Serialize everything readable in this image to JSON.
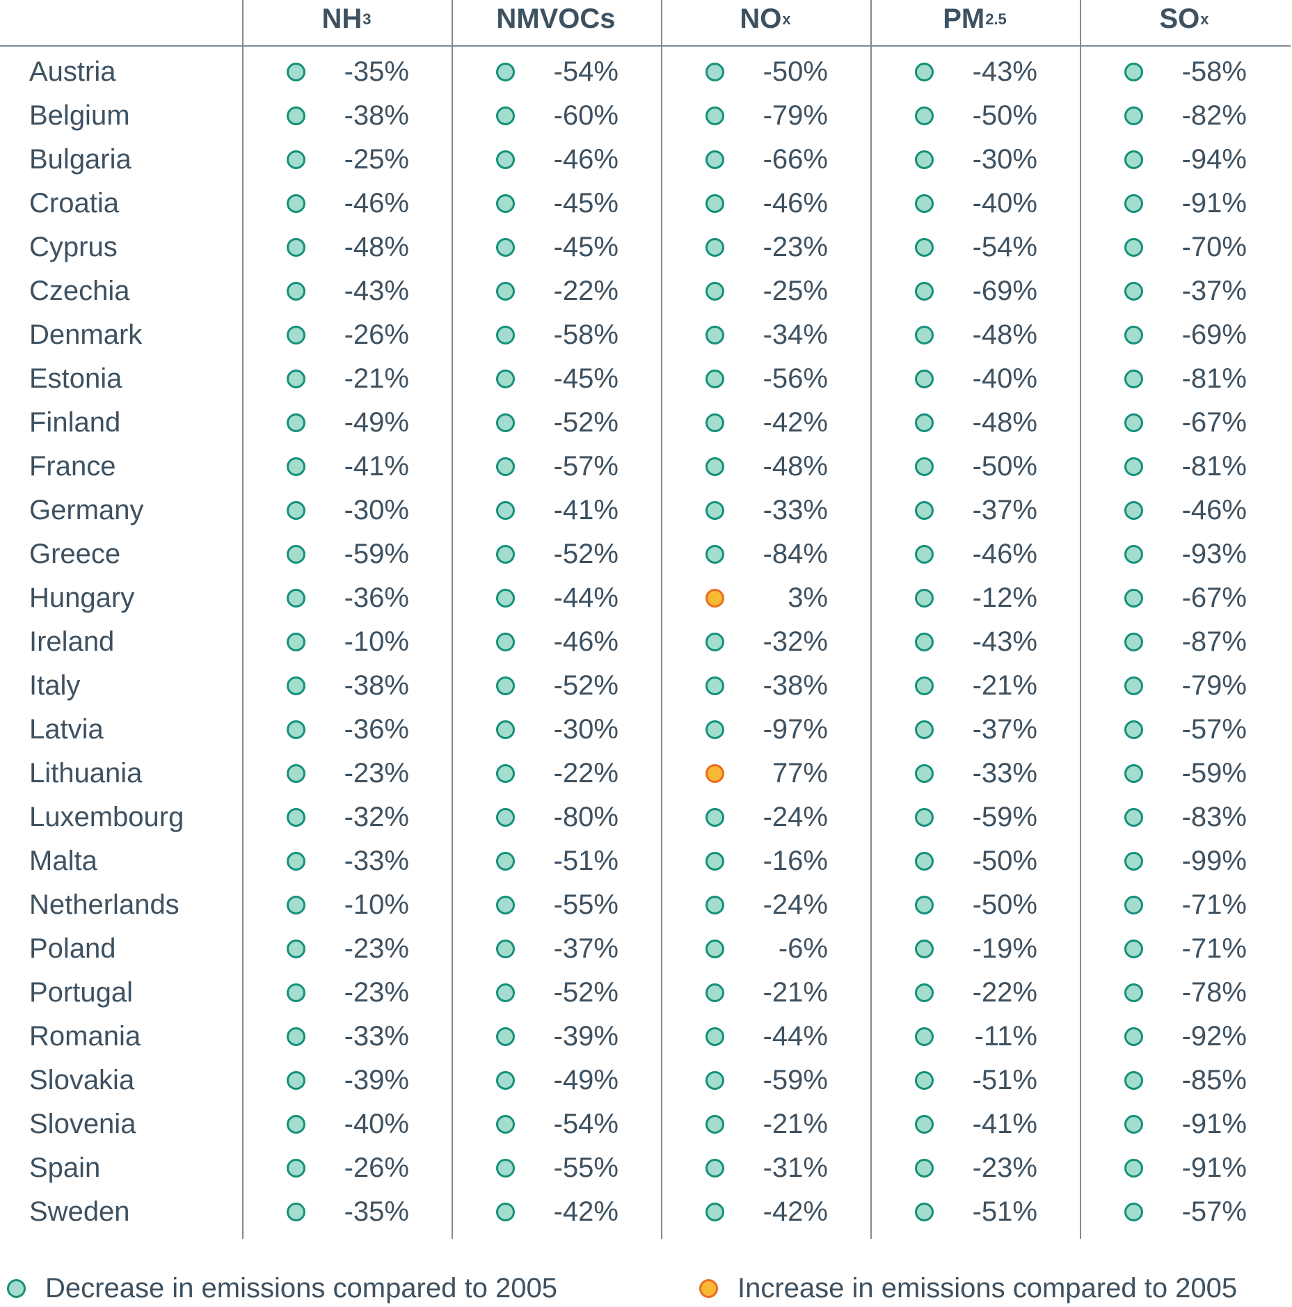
{
  "chart_data": {
    "type": "table",
    "columns": [
      {
        "base": "NH",
        "sub": "3"
      },
      {
        "base": "NMVOCs",
        "sub": ""
      },
      {
        "base": "NO",
        "sub": "x"
      },
      {
        "base": "PM",
        "sub": "2.5"
      },
      {
        "base": "SO",
        "sub": "x"
      }
    ],
    "rows": [
      {
        "country": "Austria",
        "values": [
          "-35%",
          "-54%",
          "-50%",
          "-43%",
          "-58%"
        ],
        "status": [
          "decrease",
          "decrease",
          "decrease",
          "decrease",
          "decrease"
        ]
      },
      {
        "country": "Belgium",
        "values": [
          "-38%",
          "-60%",
          "-79%",
          "-50%",
          "-82%"
        ],
        "status": [
          "decrease",
          "decrease",
          "decrease",
          "decrease",
          "decrease"
        ]
      },
      {
        "country": "Bulgaria",
        "values": [
          "-25%",
          "-46%",
          "-66%",
          "-30%",
          "-94%"
        ],
        "status": [
          "decrease",
          "decrease",
          "decrease",
          "decrease",
          "decrease"
        ]
      },
      {
        "country": "Croatia",
        "values": [
          "-46%",
          "-45%",
          "-46%",
          "-40%",
          "-91%"
        ],
        "status": [
          "decrease",
          "decrease",
          "decrease",
          "decrease",
          "decrease"
        ]
      },
      {
        "country": "Cyprus",
        "values": [
          "-48%",
          "-45%",
          "-23%",
          "-54%",
          "-70%"
        ],
        "status": [
          "decrease",
          "decrease",
          "decrease",
          "decrease",
          "decrease"
        ]
      },
      {
        "country": "Czechia",
        "values": [
          "-43%",
          "-22%",
          "-25%",
          "-69%",
          "-37%"
        ],
        "status": [
          "decrease",
          "decrease",
          "decrease",
          "decrease",
          "decrease"
        ]
      },
      {
        "country": "Denmark",
        "values": [
          "-26%",
          "-58%",
          "-34%",
          "-48%",
          "-69%"
        ],
        "status": [
          "decrease",
          "decrease",
          "decrease",
          "decrease",
          "decrease"
        ]
      },
      {
        "country": "Estonia",
        "values": [
          "-21%",
          "-45%",
          "-56%",
          "-40%",
          "-81%"
        ],
        "status": [
          "decrease",
          "decrease",
          "decrease",
          "decrease",
          "decrease"
        ]
      },
      {
        "country": "Finland",
        "values": [
          "-49%",
          "-52%",
          "-42%",
          "-48%",
          "-67%"
        ],
        "status": [
          "decrease",
          "decrease",
          "decrease",
          "decrease",
          "decrease"
        ]
      },
      {
        "country": "France",
        "values": [
          "-41%",
          "-57%",
          "-48%",
          "-50%",
          "-81%"
        ],
        "status": [
          "decrease",
          "decrease",
          "decrease",
          "decrease",
          "decrease"
        ]
      },
      {
        "country": "Germany",
        "values": [
          "-30%",
          "-41%",
          "-33%",
          "-37%",
          "-46%"
        ],
        "status": [
          "decrease",
          "decrease",
          "decrease",
          "decrease",
          "decrease"
        ]
      },
      {
        "country": "Greece",
        "values": [
          "-59%",
          "-52%",
          "-84%",
          "-46%",
          "-93%"
        ],
        "status": [
          "decrease",
          "decrease",
          "decrease",
          "decrease",
          "decrease"
        ]
      },
      {
        "country": "Hungary",
        "values": [
          "-36%",
          "-44%",
          "3%",
          "-12%",
          "-67%"
        ],
        "status": [
          "decrease",
          "decrease",
          "increase",
          "decrease",
          "decrease"
        ]
      },
      {
        "country": "Ireland",
        "values": [
          "-10%",
          "-46%",
          "-32%",
          "-43%",
          "-87%"
        ],
        "status": [
          "decrease",
          "decrease",
          "decrease",
          "decrease",
          "decrease"
        ]
      },
      {
        "country": "Italy",
        "values": [
          "-38%",
          "-52%",
          "-38%",
          "-21%",
          "-79%"
        ],
        "status": [
          "decrease",
          "decrease",
          "decrease",
          "decrease",
          "decrease"
        ]
      },
      {
        "country": "Latvia",
        "values": [
          "-36%",
          "-30%",
          "-97%",
          "-37%",
          "-57%"
        ],
        "status": [
          "decrease",
          "decrease",
          "decrease",
          "decrease",
          "decrease"
        ]
      },
      {
        "country": "Lithuania",
        "values": [
          "-23%",
          "-22%",
          "77%",
          "-33%",
          "-59%"
        ],
        "status": [
          "decrease",
          "decrease",
          "increase",
          "decrease",
          "decrease"
        ]
      },
      {
        "country": "Luxembourg",
        "values": [
          "-32%",
          "-80%",
          "-24%",
          "-59%",
          "-83%"
        ],
        "status": [
          "decrease",
          "decrease",
          "decrease",
          "decrease",
          "decrease"
        ]
      },
      {
        "country": "Malta",
        "values": [
          "-33%",
          "-51%",
          "-16%",
          "-50%",
          "-99%"
        ],
        "status": [
          "decrease",
          "decrease",
          "decrease",
          "decrease",
          "decrease"
        ]
      },
      {
        "country": "Netherlands",
        "values": [
          "-10%",
          "-55%",
          "-24%",
          "-50%",
          "-71%"
        ],
        "status": [
          "decrease",
          "decrease",
          "decrease",
          "decrease",
          "decrease"
        ]
      },
      {
        "country": "Poland",
        "values": [
          "-23%",
          "-37%",
          "-6%",
          "-19%",
          "-71%"
        ],
        "status": [
          "decrease",
          "decrease",
          "decrease",
          "decrease",
          "decrease"
        ]
      },
      {
        "country": "Portugal",
        "values": [
          "-23%",
          "-52%",
          "-21%",
          "-22%",
          "-78%"
        ],
        "status": [
          "decrease",
          "decrease",
          "decrease",
          "decrease",
          "decrease"
        ]
      },
      {
        "country": "Romania",
        "values": [
          "-33%",
          "-39%",
          "-44%",
          "-11%",
          "-92%"
        ],
        "status": [
          "decrease",
          "decrease",
          "decrease",
          "decrease",
          "decrease"
        ]
      },
      {
        "country": "Slovakia",
        "values": [
          "-39%",
          "-49%",
          "-59%",
          "-51%",
          "-85%"
        ],
        "status": [
          "decrease",
          "decrease",
          "decrease",
          "decrease",
          "decrease"
        ]
      },
      {
        "country": "Slovenia",
        "values": [
          "-40%",
          "-54%",
          "-21%",
          "-41%",
          "-91%"
        ],
        "status": [
          "decrease",
          "decrease",
          "decrease",
          "decrease",
          "decrease"
        ]
      },
      {
        "country": "Spain",
        "values": [
          "-26%",
          "-55%",
          "-31%",
          "-23%",
          "-91%"
        ],
        "status": [
          "decrease",
          "decrease",
          "decrease",
          "decrease",
          "decrease"
        ]
      },
      {
        "country": "Sweden",
        "values": [
          "-35%",
          "-42%",
          "-42%",
          "-51%",
          "-57%"
        ],
        "status": [
          "decrease",
          "decrease",
          "decrease",
          "decrease",
          "decrease"
        ]
      }
    ],
    "legend": [
      {
        "key": "decrease",
        "label": "Decrease in emissions compared to 2005"
      },
      {
        "key": "increase",
        "label": "Increase in emissions compared to 2005"
      }
    ],
    "legend_placement": "bottom"
  },
  "colors": {
    "text": "#3e5160",
    "rule": "#7d8b94",
    "decrease_fill": "#a4dccd",
    "decrease_stroke": "#14907a",
    "increase_fill": "#f9b935",
    "increase_stroke": "#ea6c20"
  },
  "icons": {
    "decrease": "teal-circle-icon",
    "increase": "orange-circle-icon"
  }
}
